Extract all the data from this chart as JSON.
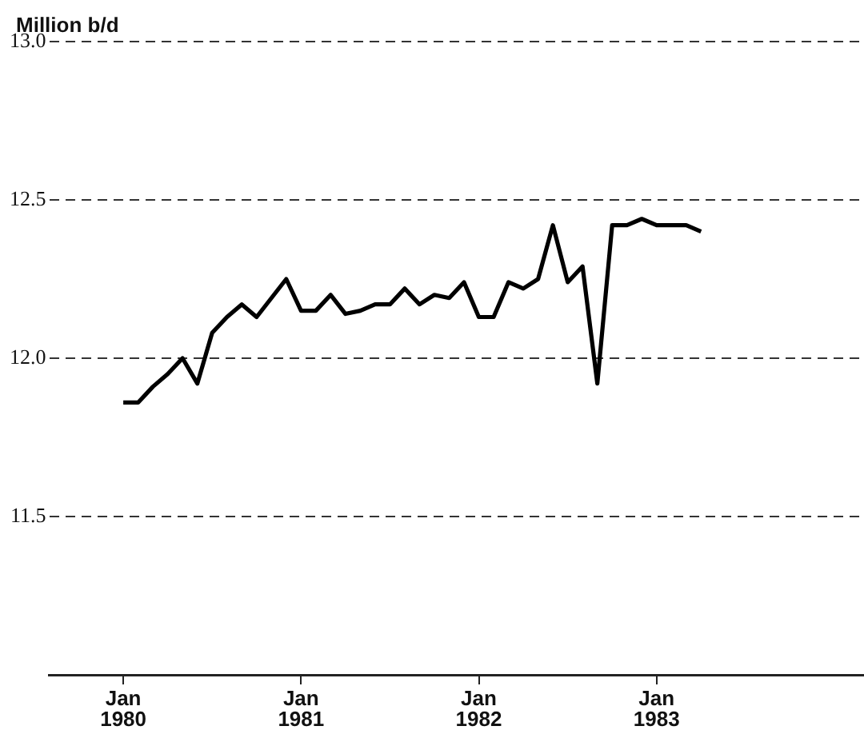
{
  "chart_data": {
    "type": "line",
    "ylabel": "Million b/d",
    "x": [
      "1980-01",
      "1980-02",
      "1980-03",
      "1980-04",
      "1980-05",
      "1980-06",
      "1980-07",
      "1980-08",
      "1980-09",
      "1980-10",
      "1980-11",
      "1980-12",
      "1981-01",
      "1981-02",
      "1981-03",
      "1981-04",
      "1981-05",
      "1981-06",
      "1981-07",
      "1981-08",
      "1981-09",
      "1981-10",
      "1981-11",
      "1981-12",
      "1982-01",
      "1982-02",
      "1982-03",
      "1982-04",
      "1982-05",
      "1982-06",
      "1982-07",
      "1982-08",
      "1982-09",
      "1982-10",
      "1982-11",
      "1982-12",
      "1983-01",
      "1983-02",
      "1983-03",
      "1983-04"
    ],
    "series": [
      {
        "color": "#000000",
        "values": [
          11.86,
          11.86,
          11.91,
          11.95,
          12.0,
          11.92,
          12.08,
          12.13,
          12.17,
          12.13,
          12.19,
          12.25,
          12.15,
          12.15,
          12.2,
          12.14,
          12.15,
          12.17,
          12.17,
          12.22,
          12.17,
          12.2,
          12.19,
          12.24,
          12.13,
          12.13,
          12.24,
          12.22,
          12.25,
          12.42,
          12.24,
          12.29,
          11.92,
          12.42,
          12.42,
          12.44,
          12.42,
          12.42,
          12.42,
          12.4
        ]
      }
    ],
    "xlim": [
      "1979-08",
      "1984-03"
    ],
    "xticks": [
      {
        "value": "1980-01",
        "label": "Jan\n1980"
      },
      {
        "value": "1981-01",
        "label": "Jan\n1981"
      },
      {
        "value": "1982-01",
        "label": "Jan\n1982"
      },
      {
        "value": "1983-01",
        "label": "Jan\n1983"
      }
    ],
    "ylim": [
      11,
      13
    ],
    "yticks": [
      {
        "value": 11.5,
        "label": "11.5"
      },
      {
        "value": 12,
        "label": "12.0"
      },
      {
        "value": 12.5,
        "label": "12.5"
      },
      {
        "value": 13,
        "label": "13.0"
      }
    ],
    "grid": "y",
    "legend": false,
    "marker": "none",
    "line_style": "solid"
  }
}
